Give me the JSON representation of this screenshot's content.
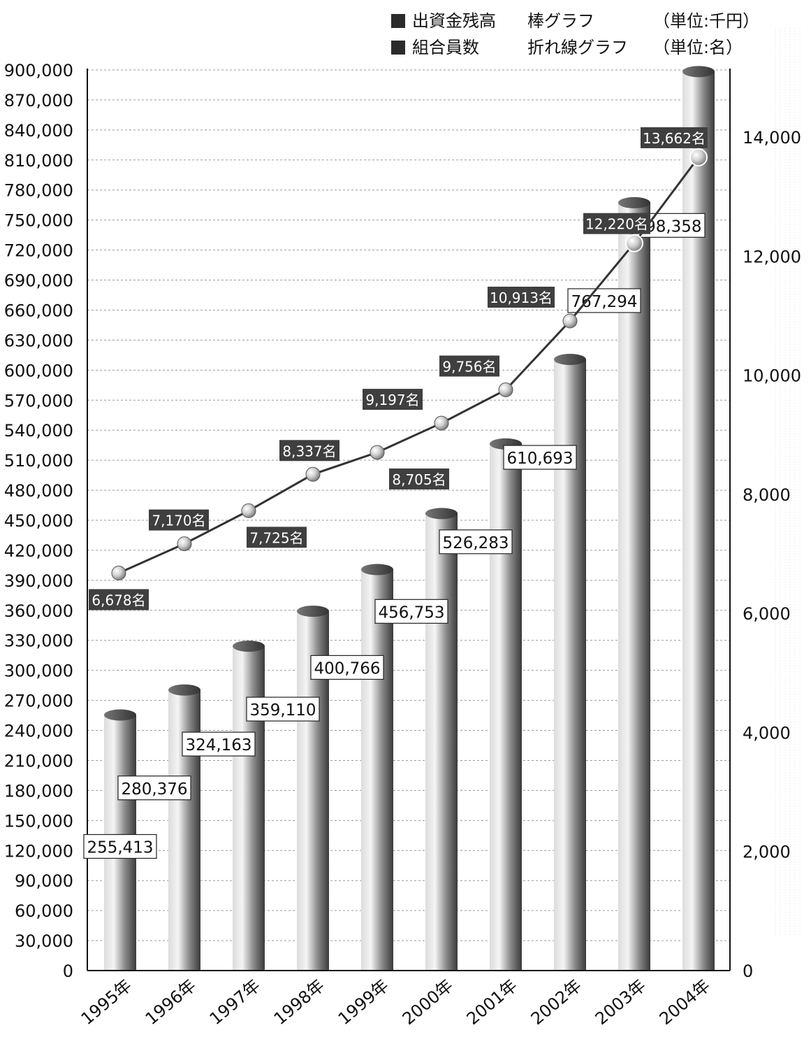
{
  "legend": [
    {
      "label": "出資金残高",
      "chart": "棒グラフ",
      "unit": "（単位:千円）"
    },
    {
      "label": "組合員数",
      "chart": "折れ線グラフ",
      "unit": "（単位:名）"
    }
  ],
  "colors": {
    "bar_light": "#f4f4f4",
    "bar_dark": "#3a3a3a",
    "line": "#333333",
    "label_bg": "#3f3f3f",
    "grid": "#9a9a9a"
  },
  "chart_data": {
    "type": "bar",
    "categories": [
      "1995年",
      "1996年",
      "1997年",
      "1998年",
      "1999年",
      "2000年",
      "2001年",
      "2002年",
      "2003年",
      "2004年"
    ],
    "series": [
      {
        "name": "出資金残高",
        "type": "bar",
        "axis": "left",
        "values": [
          255413,
          280376,
          324163,
          359110,
          400766,
          456753,
          526283,
          610693,
          767294,
          898358
        ],
        "labels": [
          "255,413",
          "280,376",
          "324,163",
          "359,110",
          "400,766",
          "456,753",
          "526,283",
          "610,693",
          "767,294",
          "898,358"
        ]
      },
      {
        "name": "組合員数",
        "type": "line",
        "axis": "right",
        "values": [
          6678,
          7170,
          7725,
          8337,
          8705,
          9197,
          9756,
          10913,
          12220,
          13662
        ],
        "labels": [
          "6,678名",
          "7,170名",
          "7,725名",
          "8,337名",
          "8,705名",
          "9,197名",
          "9,756名",
          "10,913名",
          "12,220名",
          "13,662名"
        ]
      }
    ],
    "y_left": {
      "range": [
        0,
        900000
      ],
      "ticks": [
        "0",
        "30,000",
        "60,000",
        "90,000",
        "120,000",
        "150,000",
        "180,000",
        "210,000",
        "240,000",
        "270,000",
        "300,000",
        "330,000",
        "360,000",
        "390,000",
        "420,000",
        "450,000",
        "480,000",
        "510,000",
        "540,000",
        "570,000",
        "600,000",
        "630,000",
        "660,000",
        "690,000",
        "720,000",
        "750,000",
        "780,000",
        "810,000",
        "840,000",
        "870,000",
        "900,000"
      ]
    },
    "y_right": {
      "range": [
        0,
        15130
      ],
      "ticks": [
        {
          "value": 0,
          "label": "0"
        },
        {
          "value": 2000,
          "label": "2,000"
        },
        {
          "value": 4000,
          "label": "4,000"
        },
        {
          "value": 6000,
          "label": "6,000"
        },
        {
          "value": 8000,
          "label": "8,000"
        },
        {
          "value": 10000,
          "label": "10,000"
        },
        {
          "value": 12000,
          "label": "12,000"
        },
        {
          "value": 14000,
          "label": "14,000"
        }
      ]
    },
    "grid": true
  }
}
